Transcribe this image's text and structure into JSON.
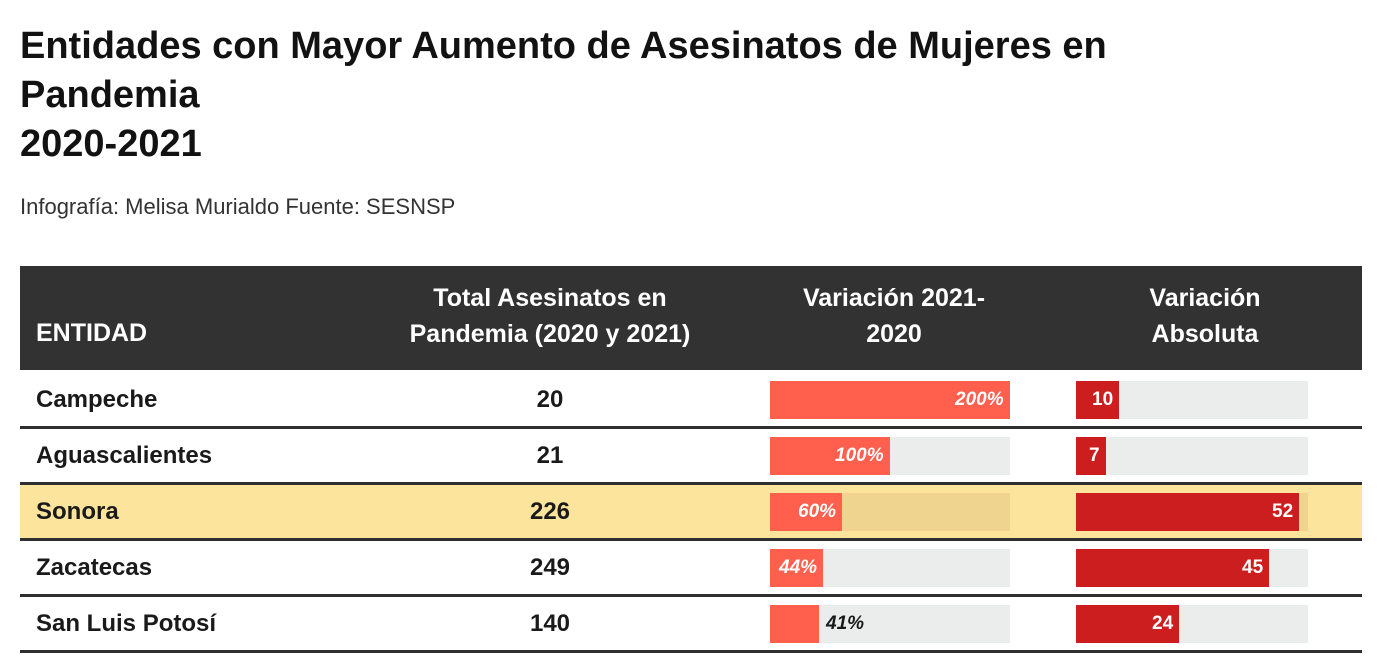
{
  "title_lines": [
    "Entidades con Mayor Aumento de Asesinatos de Mujeres en",
    "Pandemia",
    "2020-2021"
  ],
  "subtitle": "Infografía: Melisa Murialdo Fuente: SESNSP",
  "colors": {
    "header_bg": "#323232",
    "pct_bar": "#ff5f4d",
    "abs_bar": "#cc1e1e",
    "track": "#ebecec",
    "highlight_row": "#fde49c"
  },
  "chart_data": {
    "type": "table",
    "columns": [
      "ENTIDAD",
      "Total Asesinatos en Pandemia (2020 y 2021)",
      "Variación 2021-2020",
      "Variación Absoluta"
    ],
    "header_lines": {
      "entidad": [
        "ENTIDAD"
      ],
      "total": [
        "Total Asesinatos en",
        "Pandemia (2020 y 2021)"
      ],
      "variacion": [
        "Variación 2021-",
        "2020"
      ],
      "absoluta": [
        "Variación",
        "Absoluta"
      ]
    },
    "pct_max": 200,
    "abs_max": 54,
    "highlighted": "Sonora",
    "rows": [
      {
        "entidad": "Campeche",
        "total": "20",
        "variacion": 200,
        "variacion_label": "200%",
        "absoluta": 10,
        "absoluta_label": "10"
      },
      {
        "entidad": "Aguascalientes",
        "total": "21",
        "variacion": 100,
        "variacion_label": "100%",
        "absoluta": 7,
        "absoluta_label": "7"
      },
      {
        "entidad": "Sonora",
        "total": "226",
        "variacion": 60,
        "variacion_label": "60%",
        "absoluta": 52,
        "absoluta_label": "52"
      },
      {
        "entidad": "Zacatecas",
        "total": "249",
        "variacion": 44,
        "variacion_label": "44%",
        "absoluta": 45,
        "absoluta_label": "45"
      },
      {
        "entidad": "San Luis Potosí",
        "total": "140",
        "variacion": 41,
        "variacion_label": "41%",
        "absoluta": 24,
        "absoluta_label": "24"
      }
    ]
  }
}
